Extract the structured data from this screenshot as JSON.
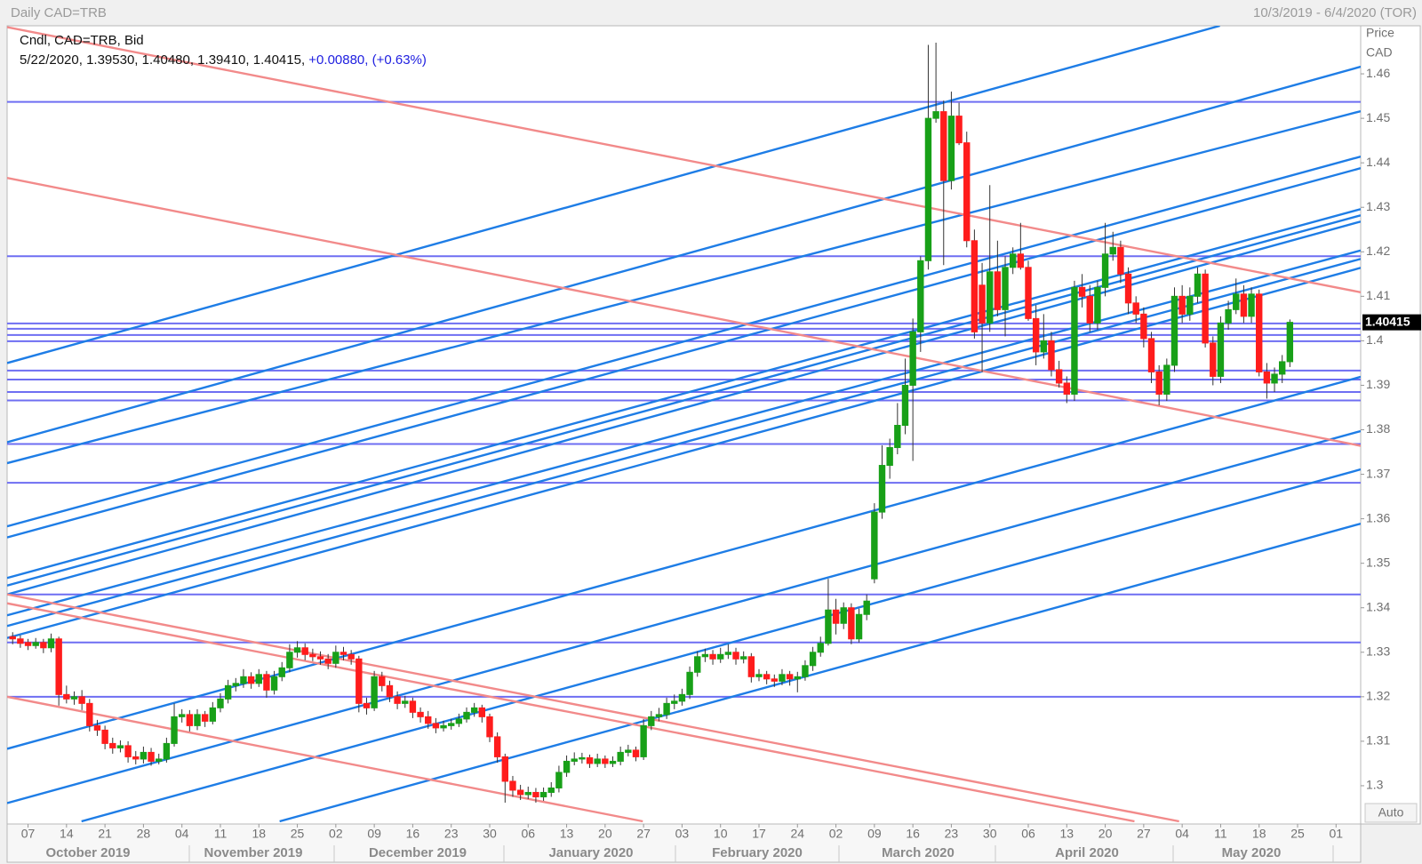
{
  "chart_data": {
    "type": "candlestick",
    "title": "Daily CAD=TRB",
    "date_range": "10/3/2019 - 6/4/2020 (TOR)",
    "legend_title": "Cndl, CAD=TRB, Bid",
    "legend_ohlc": "5/22/2020, 1.39530, 1.40480, 1.39410, 1.40415,",
    "legend_change": "+0.00880, (+0.63%)",
    "y_title": "Price",
    "y_unit": "CAD",
    "auto_button": "Auto",
    "last_price": 1.40415,
    "up_color": "#18a018",
    "down_color": "#ff1c1c",
    "wick_color": "#333333",
    "horizontal_line_color": "#6e6ef2",
    "ylim": [
      1.2914,
      1.4708
    ],
    "yticks": [
      1.3,
      1.31,
      1.32,
      1.33,
      1.34,
      1.35,
      1.36,
      1.37,
      1.38,
      1.39,
      1.4,
      1.41,
      1.42,
      1.43,
      1.44,
      1.45,
      1.46
    ],
    "xlim": [
      -0.72,
      175.2
    ],
    "xticks": [
      {
        "value": 2,
        "label": "07"
      },
      {
        "value": 7,
        "label": "14"
      },
      {
        "value": 12,
        "label": "21"
      },
      {
        "value": 17,
        "label": "28"
      },
      {
        "value": 22,
        "label": "04"
      },
      {
        "value": 27,
        "label": "11"
      },
      {
        "value": 32,
        "label": "18"
      },
      {
        "value": 37,
        "label": "25"
      },
      {
        "value": 42,
        "label": "02"
      },
      {
        "value": 47,
        "label": "09"
      },
      {
        "value": 52,
        "label": "16"
      },
      {
        "value": 57,
        "label": "23"
      },
      {
        "value": 62,
        "label": "30"
      },
      {
        "value": 67,
        "label": "06"
      },
      {
        "value": 72,
        "label": "13"
      },
      {
        "value": 77,
        "label": "20"
      },
      {
        "value": 82,
        "label": "27"
      },
      {
        "value": 87,
        "label": "03"
      },
      {
        "value": 92,
        "label": "10"
      },
      {
        "value": 97,
        "label": "17"
      },
      {
        "value": 102,
        "label": "24"
      },
      {
        "value": 107,
        "label": "02"
      },
      {
        "value": 112,
        "label": "09"
      },
      {
        "value": 117,
        "label": "16"
      },
      {
        "value": 122,
        "label": "23"
      },
      {
        "value": 127,
        "label": "30"
      },
      {
        "value": 132,
        "label": "06"
      },
      {
        "value": 137,
        "label": "13"
      },
      {
        "value": 142,
        "label": "20"
      },
      {
        "value": 147,
        "label": "27"
      },
      {
        "value": 152,
        "label": "04"
      },
      {
        "value": 157,
        "label": "11"
      },
      {
        "value": 162,
        "label": "18"
      },
      {
        "value": 167,
        "label": "25"
      },
      {
        "value": 172,
        "label": "01"
      }
    ],
    "months": [
      "October 2019",
      "November 2019",
      "December 2019",
      "January 2020",
      "February 2020",
      "March 2020",
      "April 2020",
      "May 2020"
    ],
    "horizontal_lines": [
      1.4537,
      1.419,
      1.4039,
      1.4027,
      1.4013,
      1.3999,
      1.3933,
      1.3913,
      1.3885,
      1.3866,
      1.3768,
      1.3681,
      1.343,
      1.3322,
      1.32
    ],
    "trend_lines": [
      {
        "color": "#1e7de6",
        "x": [
          -0.72,
          156.9
        ],
        "y": [
          1.395,
          1.4708
        ]
      },
      {
        "color": "#1e7de6",
        "x": [
          -0.72,
          175.2
        ],
        "y": [
          1.3772,
          1.4616
        ]
      },
      {
        "color": "#1e7de6",
        "x": [
          -0.72,
          175.2
        ],
        "y": [
          1.3725,
          1.4516
        ]
      },
      {
        "color": "#1e7de6",
        "x": [
          -0.72,
          175.2
        ],
        "y": [
          1.3583,
          1.4414
        ]
      },
      {
        "color": "#1e7de6",
        "x": [
          -0.72,
          175.2
        ],
        "y": [
          1.3558,
          1.4388
        ]
      },
      {
        "color": "#1e7de6",
        "x": [
          -0.72,
          175.2
        ],
        "y": [
          1.3467,
          1.4296
        ]
      },
      {
        "color": "#1e7de6",
        "x": [
          -0.72,
          175.2
        ],
        "y": [
          1.345,
          1.4282
        ]
      },
      {
        "color": "#1e7de6",
        "x": [
          -0.72,
          175.2
        ],
        "y": [
          1.343,
          1.4268
        ]
      },
      {
        "color": "#1e7de6",
        "x": [
          -0.72,
          175.2
        ],
        "y": [
          1.3383,
          1.4203
        ]
      },
      {
        "color": "#1e7de6",
        "x": [
          -0.72,
          175.2
        ],
        "y": [
          1.3359,
          1.4184
        ]
      },
      {
        "color": "#1e7de6",
        "x": [
          -0.72,
          175.2
        ],
        "y": [
          1.3332,
          1.4164
        ]
      },
      {
        "color": "#1e7de6",
        "x": [
          -0.72,
          175.2
        ],
        "y": [
          1.3083,
          1.3919
        ]
      },
      {
        "color": "#1e7de6",
        "x": [
          -0.72,
          175.2
        ],
        "y": [
          1.2961,
          1.3797
        ]
      },
      {
        "color": "#1e7de6",
        "x": [
          8.95,
          175.2
        ],
        "y": [
          1.292,
          1.3711
        ]
      },
      {
        "color": "#1e7de6",
        "x": [
          34.7,
          175.2
        ],
        "y": [
          1.292,
          1.3589
        ]
      },
      {
        "color": "#f28a8a",
        "x": [
          -0.72,
          175.2
        ],
        "y": [
          1.4705,
          1.4109
        ]
      },
      {
        "color": "#f28a8a",
        "x": [
          -0.72,
          175.2
        ],
        "y": [
          1.4366,
          1.3764
        ]
      },
      {
        "color": "#f28a8a",
        "x": [
          -0.72,
          151.6
        ],
        "y": [
          1.343,
          1.292
        ]
      },
      {
        "color": "#f28a8a",
        "x": [
          -0.72,
          145.8
        ],
        "y": [
          1.341,
          1.292
        ]
      },
      {
        "color": "#f28a8a",
        "x": [
          -0.72,
          81.9
        ],
        "y": [
          1.32,
          1.292
        ]
      }
    ],
    "candles": [
      [
        1.3335,
        1.3345,
        1.3318,
        1.333
      ],
      [
        1.333,
        1.3338,
        1.331,
        1.332
      ],
      [
        1.3322,
        1.333,
        1.3305,
        1.3315
      ],
      [
        1.3315,
        1.3332,
        1.3308,
        1.3322
      ],
      [
        1.3322,
        1.333,
        1.3298,
        1.331
      ],
      [
        1.331,
        1.3342,
        1.33,
        1.333
      ],
      [
        1.333,
        1.3335,
        1.318,
        1.3205
      ],
      [
        1.3205,
        1.3225,
        1.3185,
        1.3195
      ],
      [
        1.3195,
        1.3212,
        1.3182,
        1.32
      ],
      [
        1.32,
        1.3215,
        1.317,
        1.3185
      ],
      [
        1.3185,
        1.3195,
        1.3122,
        1.3135
      ],
      [
        1.3135,
        1.3148,
        1.3112,
        1.3125
      ],
      [
        1.3125,
        1.3135,
        1.3082,
        1.3095
      ],
      [
        1.3095,
        1.3108,
        1.3072,
        1.3085
      ],
      [
        1.3085,
        1.3102,
        1.3075,
        1.309
      ],
      [
        1.309,
        1.31,
        1.3052,
        1.3065
      ],
      [
        1.3065,
        1.3078,
        1.3048,
        1.306
      ],
      [
        1.306,
        1.3088,
        1.305,
        1.3075
      ],
      [
        1.3075,
        1.3085,
        1.3045,
        1.3055
      ],
      [
        1.3055,
        1.3072,
        1.3048,
        1.306
      ],
      [
        1.306,
        1.3108,
        1.3052,
        1.3095
      ],
      [
        1.3095,
        1.3185,
        1.3088,
        1.3155
      ],
      [
        1.3155,
        1.3172,
        1.3142,
        1.316
      ],
      [
        1.316,
        1.317,
        1.3122,
        1.3135
      ],
      [
        1.3135,
        1.3172,
        1.3125,
        1.316
      ],
      [
        1.316,
        1.3168,
        1.3132,
        1.3145
      ],
      [
        1.3145,
        1.3188,
        1.3138,
        1.3175
      ],
      [
        1.3175,
        1.3208,
        1.3165,
        1.3195
      ],
      [
        1.3195,
        1.3238,
        1.3185,
        1.3225
      ],
      [
        1.3225,
        1.3242,
        1.3212,
        1.323
      ],
      [
        1.323,
        1.3262,
        1.322,
        1.3245
      ],
      [
        1.3245,
        1.3255,
        1.3218,
        1.323
      ],
      [
        1.323,
        1.3262,
        1.3222,
        1.325
      ],
      [
        1.325,
        1.3258,
        1.3198,
        1.3215
      ],
      [
        1.3215,
        1.3258,
        1.3205,
        1.3245
      ],
      [
        1.3245,
        1.3278,
        1.3235,
        1.3265
      ],
      [
        1.3265,
        1.3318,
        1.3255,
        1.33
      ],
      [
        1.33,
        1.3325,
        1.3288,
        1.331
      ],
      [
        1.331,
        1.332,
        1.3282,
        1.3295
      ],
      [
        1.3295,
        1.3308,
        1.328,
        1.329
      ],
      [
        1.329,
        1.3302,
        1.3272,
        1.3285
      ],
      [
        1.3285,
        1.3296,
        1.3262,
        1.3275
      ],
      [
        1.3275,
        1.3315,
        1.3265,
        1.33
      ],
      [
        1.33,
        1.3312,
        1.3282,
        1.3295
      ],
      [
        1.3295,
        1.3305,
        1.3272,
        1.3285
      ],
      [
        1.3285,
        1.3292,
        1.3165,
        1.3185
      ],
      [
        1.3185,
        1.3198,
        1.316,
        1.3175
      ],
      [
        1.3175,
        1.3258,
        1.3168,
        1.3245
      ],
      [
        1.3245,
        1.3256,
        1.3212,
        1.3225
      ],
      [
        1.3225,
        1.3236,
        1.3188,
        1.32
      ],
      [
        1.32,
        1.3212,
        1.3172,
        1.3185
      ],
      [
        1.3185,
        1.3202,
        1.3175,
        1.319
      ],
      [
        1.319,
        1.3198,
        1.3152,
        1.3165
      ],
      [
        1.3165,
        1.3176,
        1.3142,
        1.3155
      ],
      [
        1.3155,
        1.3168,
        1.3128,
        1.314
      ],
      [
        1.314,
        1.3152,
        1.3118,
        1.313
      ],
      [
        1.313,
        1.3146,
        1.3122,
        1.3135
      ],
      [
        1.3135,
        1.315,
        1.3126,
        1.314
      ],
      [
        1.314,
        1.3162,
        1.3132,
        1.315
      ],
      [
        1.315,
        1.3176,
        1.3142,
        1.3165
      ],
      [
        1.3165,
        1.3186,
        1.3155,
        1.3175
      ],
      [
        1.3175,
        1.3182,
        1.3142,
        1.3155
      ],
      [
        1.3155,
        1.3162,
        1.3098,
        1.311
      ],
      [
        1.311,
        1.312,
        1.3052,
        1.3065
      ],
      [
        1.3065,
        1.3072,
        1.2962,
        1.301
      ],
      [
        1.301,
        1.3022,
        1.2975,
        1.299
      ],
      [
        1.299,
        1.3002,
        1.2968,
        1.298
      ],
      [
        1.298,
        1.2998,
        1.297,
        1.2985
      ],
      [
        1.2985,
        1.2995,
        1.2962,
        1.2975
      ],
      [
        1.2975,
        1.2996,
        1.2966,
        1.2985
      ],
      [
        1.2985,
        1.3008,
        1.2975,
        1.2995
      ],
      [
        1.2995,
        1.3045,
        1.2985,
        1.303
      ],
      [
        1.303,
        1.3068,
        1.302,
        1.3055
      ],
      [
        1.3055,
        1.3075,
        1.3046,
        1.306
      ],
      [
        1.306,
        1.3074,
        1.305,
        1.3063
      ],
      [
        1.3063,
        1.307,
        1.304,
        1.305
      ],
      [
        1.305,
        1.3072,
        1.3042,
        1.306
      ],
      [
        1.306,
        1.3068,
        1.304,
        1.305
      ],
      [
        1.305,
        1.3066,
        1.3042,
        1.3055
      ],
      [
        1.3055,
        1.3088,
        1.3046,
        1.3075
      ],
      [
        1.3075,
        1.3092,
        1.3066,
        1.308
      ],
      [
        1.308,
        1.3088,
        1.3055,
        1.3065
      ],
      [
        1.3065,
        1.315,
        1.3058,
        1.3135
      ],
      [
        1.3135,
        1.3168,
        1.3125,
        1.3155
      ],
      [
        1.3155,
        1.3175,
        1.3145,
        1.316
      ],
      [
        1.316,
        1.3198,
        1.315,
        1.3185
      ],
      [
        1.3185,
        1.3205,
        1.3172,
        1.319
      ],
      [
        1.319,
        1.3218,
        1.318,
        1.3205
      ],
      [
        1.3205,
        1.3268,
        1.3195,
        1.3255
      ],
      [
        1.3255,
        1.3302,
        1.3245,
        1.329
      ],
      [
        1.329,
        1.3308,
        1.3278,
        1.3295
      ],
      [
        1.3295,
        1.3305,
        1.3272,
        1.3285
      ],
      [
        1.3285,
        1.331,
        1.3276,
        1.3295
      ],
      [
        1.3295,
        1.3318,
        1.3285,
        1.33
      ],
      [
        1.33,
        1.331,
        1.3272,
        1.3285
      ],
      [
        1.3285,
        1.3302,
        1.3275,
        1.329
      ],
      [
        1.329,
        1.3298,
        1.3232,
        1.3245
      ],
      [
        1.3245,
        1.3262,
        1.3235,
        1.325
      ],
      [
        1.325,
        1.3258,
        1.3228,
        1.324
      ],
      [
        1.324,
        1.325,
        1.3222,
        1.3235
      ],
      [
        1.3235,
        1.3262,
        1.3226,
        1.325
      ],
      [
        1.325,
        1.3258,
        1.3225,
        1.324
      ],
      [
        1.324,
        1.3256,
        1.321,
        1.3245
      ],
      [
        1.3245,
        1.3282,
        1.3236,
        1.327
      ],
      [
        1.327,
        1.3312,
        1.3258,
        1.33
      ],
      [
        1.33,
        1.3335,
        1.329,
        1.332
      ],
      [
        1.332,
        1.3465,
        1.3315,
        1.3395
      ],
      [
        1.3395,
        1.342,
        1.334,
        1.3365
      ],
      [
        1.3365,
        1.3412,
        1.3352,
        1.34
      ],
      [
        1.34,
        1.341,
        1.3318,
        1.333
      ],
      [
        1.333,
        1.3398,
        1.3322,
        1.3385
      ],
      [
        1.3385,
        1.343,
        1.3372,
        1.3415
      ],
      [
        1.3465,
        1.3635,
        1.3455,
        1.3615
      ],
      [
        1.3615,
        1.3765,
        1.36,
        1.372
      ],
      [
        1.372,
        1.378,
        1.369,
        1.376
      ],
      [
        1.376,
        1.386,
        1.3745,
        1.381
      ],
      [
        1.381,
        1.396,
        1.379,
        1.39
      ],
      [
        1.39,
        1.405,
        1.373,
        1.402
      ],
      [
        1.402,
        1.419,
        1.3975,
        1.418
      ],
      [
        1.418,
        1.4665,
        1.416,
        1.45
      ],
      [
        1.45,
        1.467,
        1.449,
        1.4515
      ],
      [
        1.4515,
        1.454,
        1.417,
        1.436
      ],
      [
        1.436,
        1.456,
        1.434,
        1.4505
      ],
      [
        1.4505,
        1.4535,
        1.444,
        1.4445
      ],
      [
        1.4445,
        1.447,
        1.421,
        1.4225
      ],
      [
        1.4225,
        1.425,
        1.4005,
        1.402
      ],
      [
        1.4125,
        1.4175,
        1.393,
        1.404
      ],
      [
        1.404,
        1.435,
        1.402,
        1.4155
      ],
      [
        1.4155,
        1.4225,
        1.4055,
        1.407
      ],
      [
        1.407,
        1.419,
        1.401,
        1.4165
      ],
      [
        1.4165,
        1.421,
        1.415,
        1.4195
      ],
      [
        1.4195,
        1.4265,
        1.416,
        1.4165
      ],
      [
        1.4165,
        1.418,
        1.4045,
        1.405
      ],
      [
        1.405,
        1.408,
        1.3945,
        1.3975
      ],
      [
        1.3975,
        1.406,
        1.396,
        1.4
      ],
      [
        1.4,
        1.402,
        1.392,
        1.3935
      ],
      [
        1.3935,
        1.3955,
        1.3895,
        1.3905
      ],
      [
        1.3905,
        1.392,
        1.386,
        1.388
      ],
      [
        1.388,
        1.4135,
        1.3865,
        1.412
      ],
      [
        1.412,
        1.415,
        1.4075,
        1.41
      ],
      [
        1.41,
        1.4125,
        1.402,
        1.404
      ],
      [
        1.404,
        1.4135,
        1.4025,
        1.412
      ],
      [
        1.412,
        1.4265,
        1.41,
        1.4195
      ],
      [
        1.4195,
        1.4245,
        1.418,
        1.421
      ],
      [
        1.421,
        1.4225,
        1.413,
        1.415
      ],
      [
        1.415,
        1.4165,
        1.406,
        1.4085
      ],
      [
        1.4085,
        1.41,
        1.404,
        1.406
      ],
      [
        1.406,
        1.4075,
        1.3985,
        1.4005
      ],
      [
        1.4005,
        1.402,
        1.3905,
        1.393
      ],
      [
        1.393,
        1.3945,
        1.3855,
        1.388
      ],
      [
        1.388,
        1.396,
        1.3865,
        1.3945
      ],
      [
        1.3945,
        1.412,
        1.393,
        1.41
      ],
      [
        1.41,
        1.4125,
        1.404,
        1.406
      ],
      [
        1.406,
        1.412,
        1.4045,
        1.41
      ],
      [
        1.41,
        1.4165,
        1.4085,
        1.415
      ],
      [
        1.415,
        1.416,
        1.3985,
        1.3995
      ],
      [
        1.3995,
        1.401,
        1.39,
        1.392
      ],
      [
        1.392,
        1.4055,
        1.3905,
        1.404
      ],
      [
        1.404,
        1.409,
        1.4025,
        1.407
      ],
      [
        1.407,
        1.414,
        1.406,
        1.4105
      ],
      [
        1.4105,
        1.4125,
        1.404,
        1.4055
      ],
      [
        1.4055,
        1.412,
        1.404,
        1.4105
      ],
      [
        1.4105,
        1.4115,
        1.392,
        1.393
      ],
      [
        1.393,
        1.395,
        1.387,
        1.3905
      ],
      [
        1.3905,
        1.394,
        1.3885,
        1.3925
      ],
      [
        1.3925,
        1.3968,
        1.3905,
        1.3953
      ],
      [
        1.3953,
        1.4048,
        1.3941,
        1.40415
      ]
    ]
  }
}
